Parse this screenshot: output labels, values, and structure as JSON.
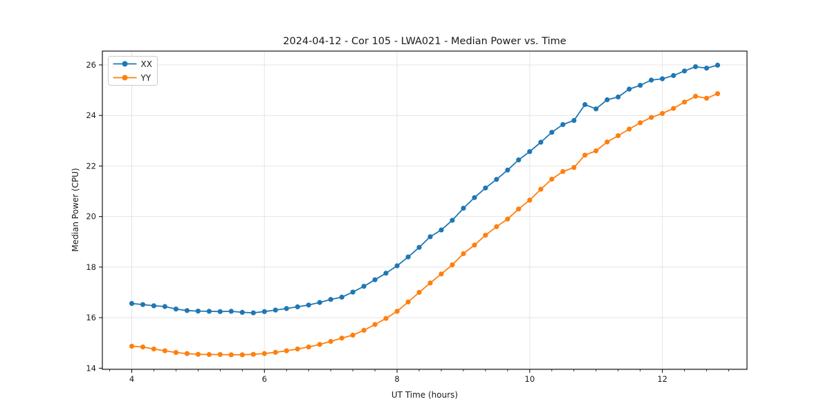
{
  "chart_data": {
    "type": "line",
    "title": "2024-04-12 - Cor 105 - LWA021 - Median Power vs. Time",
    "xlabel": "UT Time (hours)",
    "ylabel": "Median Power (CPU)",
    "xlim": [
      3.557,
      13.276
    ],
    "ylim": [
      13.954,
      26.546
    ],
    "x_major_ticks": [
      4,
      6,
      8,
      10,
      12
    ],
    "x_minor_tick_step": 0.33333,
    "y_major_ticks": [
      14,
      16,
      18,
      20,
      22,
      24,
      26
    ],
    "grid": true,
    "grid_color": "#e4e4e4",
    "spine_color": "#000000",
    "legend_position": "upper-left",
    "x": [
      4.0,
      4.167,
      4.333,
      4.5,
      4.667,
      4.833,
      5.0,
      5.167,
      5.333,
      5.5,
      5.667,
      5.833,
      6.0,
      6.167,
      6.333,
      6.5,
      6.667,
      6.833,
      7.0,
      7.167,
      7.333,
      7.5,
      7.667,
      7.833,
      8.0,
      8.167,
      8.333,
      8.5,
      8.667,
      8.833,
      9.0,
      9.167,
      9.333,
      9.5,
      9.667,
      9.833,
      10.0,
      10.167,
      10.333,
      10.5,
      10.667,
      10.833,
      11.0,
      11.167,
      11.333,
      11.5,
      11.667,
      11.833,
      12.0,
      12.167,
      12.333,
      12.5,
      12.667,
      12.833
    ],
    "series": [
      {
        "name": "XX",
        "color": "#1f77b4",
        "values": [
          16.56,
          16.52,
          16.47,
          16.44,
          16.34,
          16.28,
          16.26,
          16.25,
          16.24,
          16.25,
          16.21,
          16.19,
          16.24,
          16.3,
          16.36,
          16.43,
          16.5,
          16.6,
          16.72,
          16.81,
          17.01,
          17.24,
          17.5,
          17.76,
          18.05,
          18.4,
          18.78,
          19.2,
          19.47,
          19.85,
          20.33,
          20.75,
          21.13,
          21.47,
          21.84,
          22.24,
          22.57,
          22.94,
          23.33,
          23.64,
          23.8,
          24.43,
          24.26,
          24.62,
          24.73,
          25.04,
          25.19,
          25.4,
          25.45,
          25.58,
          25.76,
          25.93,
          25.87,
          25.99
        ]
      },
      {
        "name": "YY",
        "color": "#ff7f0e",
        "values": [
          14.87,
          14.84,
          14.76,
          14.69,
          14.62,
          14.58,
          14.55,
          14.54,
          14.54,
          14.53,
          14.53,
          14.55,
          14.58,
          14.63,
          14.69,
          14.76,
          14.84,
          14.94,
          15.06,
          15.19,
          15.31,
          15.5,
          15.73,
          15.97,
          16.25,
          16.62,
          17.0,
          17.37,
          17.73,
          18.09,
          18.53,
          18.87,
          19.26,
          19.6,
          19.9,
          20.3,
          20.65,
          21.08,
          21.48,
          21.78,
          21.94,
          22.43,
          22.6,
          22.95,
          23.2,
          23.46,
          23.71,
          23.92,
          24.08,
          24.28,
          24.53,
          24.76,
          24.68,
          24.86
        ]
      }
    ]
  }
}
